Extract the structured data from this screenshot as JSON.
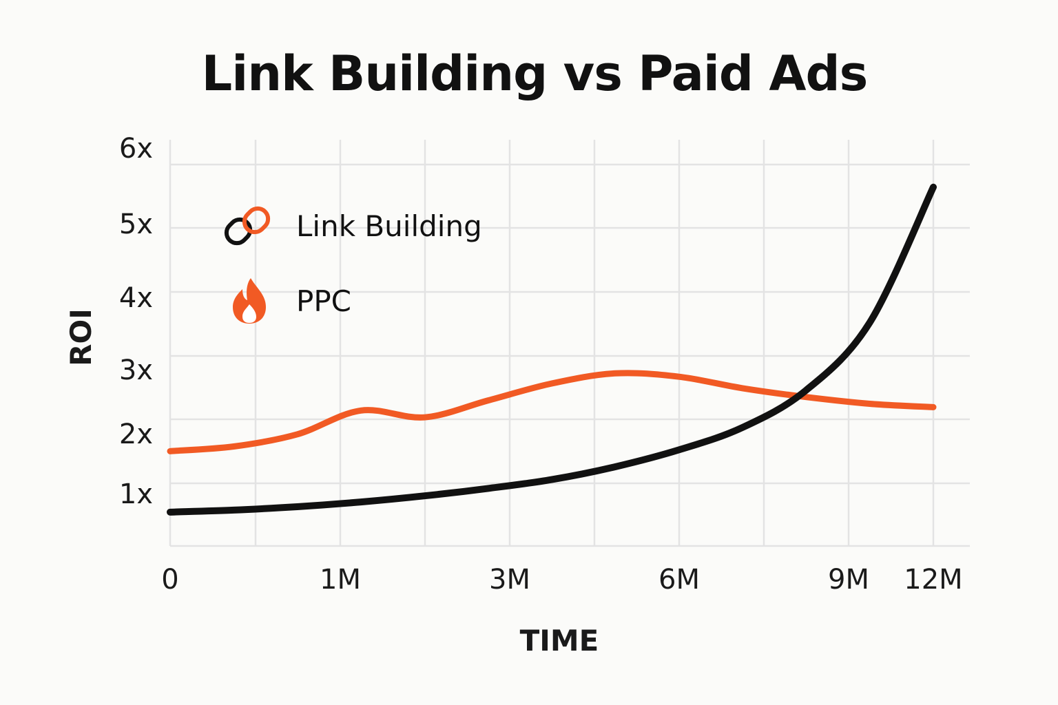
{
  "chart_data": {
    "type": "line",
    "title": "Link Building vs Paid Ads",
    "xlabel": "TIME",
    "ylabel": "ROI",
    "x_tick_labels": [
      "0",
      "1M",
      "3M",
      "6M",
      "9M",
      "12M"
    ],
    "y_tick_labels": [
      "1x",
      "2x",
      "3x",
      "4x",
      "5x",
      "6x"
    ],
    "y_ticks": [
      1,
      2,
      3,
      4,
      5,
      6
    ],
    "ylim": [
      0.3,
      6.3
    ],
    "grid": true,
    "legend_position": "top-left",
    "series": [
      {
        "name": "Link Building",
        "icon": "chain-link-icon",
        "color": "#111111",
        "x": [
          0,
          1,
          2,
          3,
          4,
          5,
          6,
          7,
          8,
          9,
          10,
          11,
          12
        ],
        "values": [
          0.8,
          0.83,
          0.88,
          0.95,
          1.04,
          1.15,
          1.28,
          1.47,
          1.72,
          2.05,
          2.6,
          3.6,
          5.6
        ]
      },
      {
        "name": "PPC",
        "icon": "flame-icon",
        "color": "#f15a24",
        "x": [
          0,
          1,
          2,
          3,
          4,
          5,
          6,
          7,
          8,
          9,
          10,
          11,
          12
        ],
        "values": [
          1.7,
          1.77,
          1.95,
          2.3,
          2.2,
          2.45,
          2.7,
          2.85,
          2.8,
          2.63,
          2.5,
          2.4,
          2.35
        ]
      }
    ]
  }
}
